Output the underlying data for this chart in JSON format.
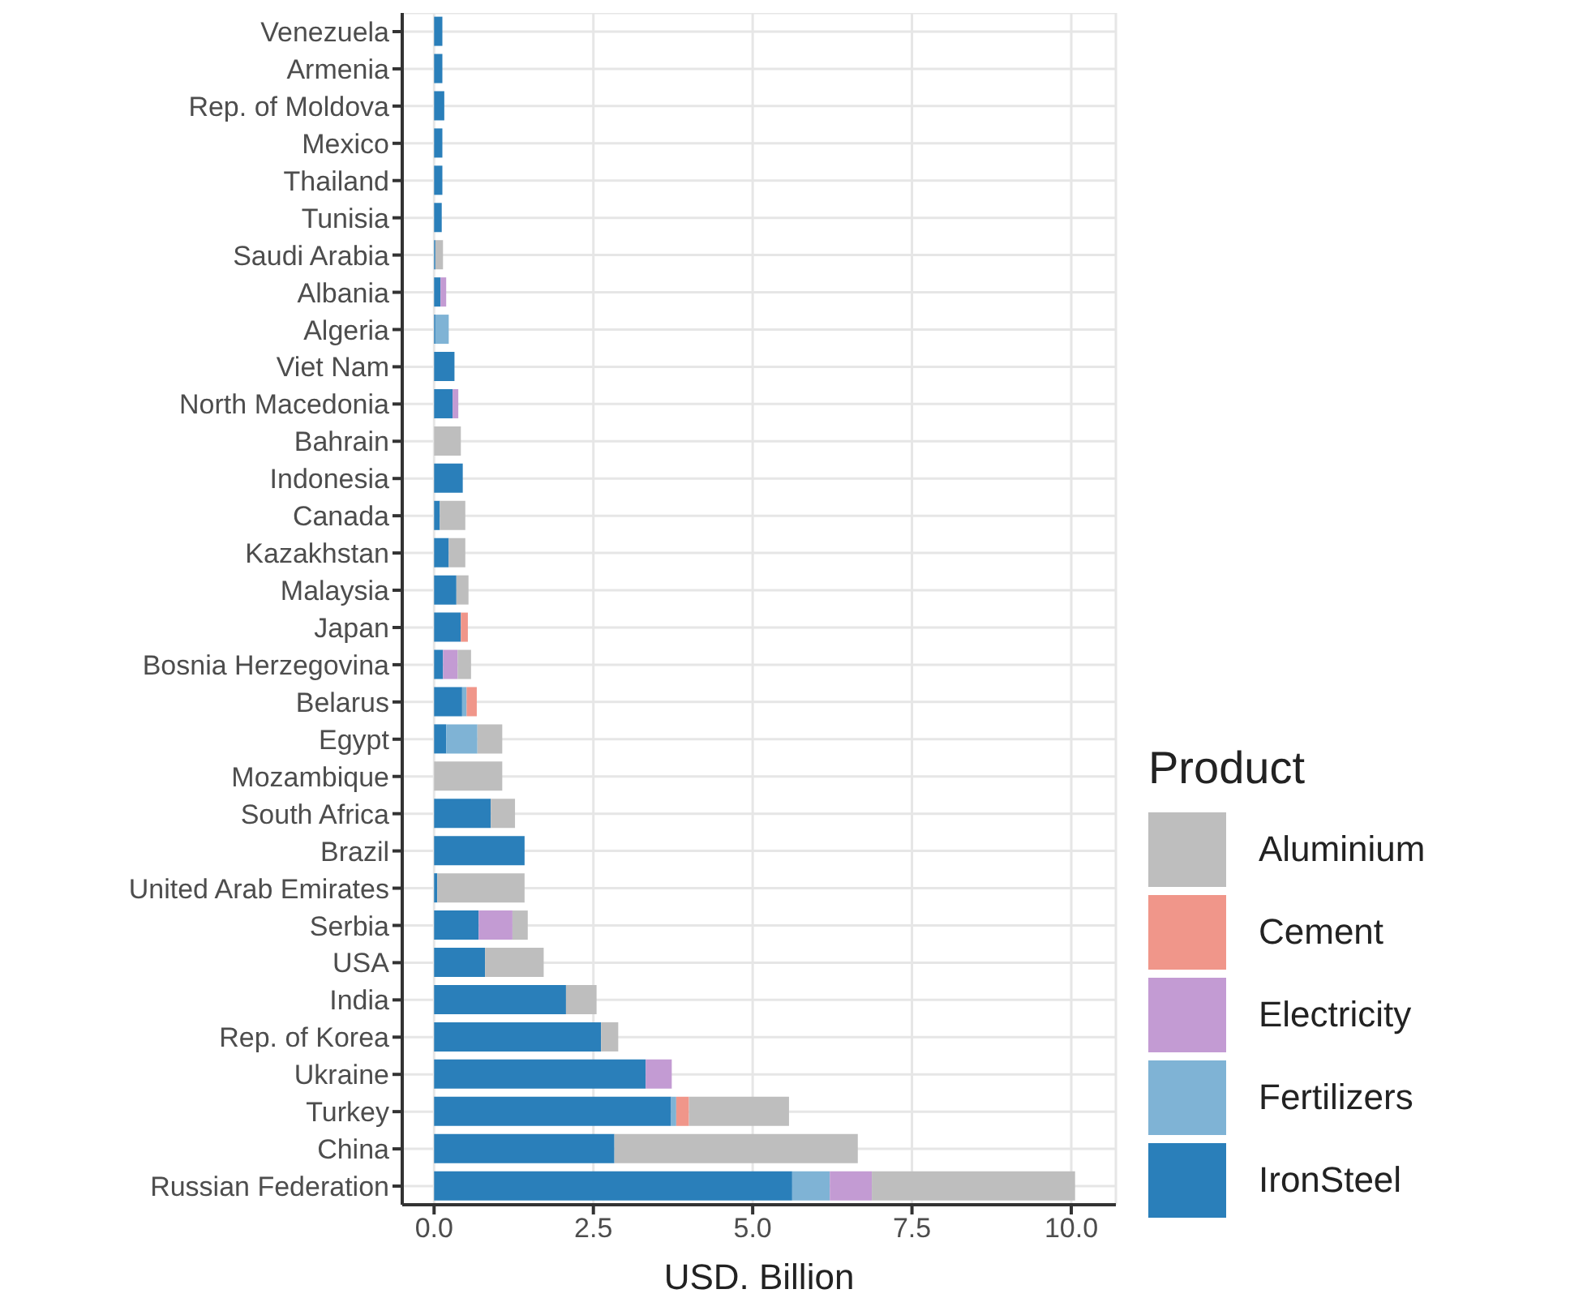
{
  "chart_data": {
    "type": "bar",
    "orientation": "horizontal",
    "stacked": true,
    "xlabel": "USD. Billion",
    "legend_title": "Product",
    "legend": "right",
    "grid": true,
    "categories": [
      "Venezuela",
      "Armenia",
      "Rep. of Moldova",
      "Mexico",
      "Thailand",
      "Tunisia",
      "Saudi Arabia",
      "Albania",
      "Algeria",
      "Viet Nam",
      "North Macedonia",
      "Bahrain",
      "Indonesia",
      "Canada",
      "Kazakhstan",
      "Malaysia",
      "Japan",
      "Bosnia Herzegovina",
      "Belarus",
      "Egypt",
      "Mozambique",
      "South Africa",
      "Brazil",
      "United Arab Emirates",
      "Serbia",
      "USA",
      "India",
      "Rep. of Korea",
      "Ukraine",
      "Turkey",
      "China",
      "Russian Federation"
    ],
    "xlim": [
      -0.5,
      10.7
    ],
    "xticks": [
      {
        "value": 0,
        "label": "0.0"
      },
      2.5,
      {
        "value": 5,
        "label": "5.0"
      },
      7.5,
      {
        "value": 10,
        "label": "10.0"
      }
    ],
    "series": [
      {
        "name": "IronSteel",
        "color": "#2a7fba",
        "values": [
          0.13,
          0.13,
          0.16,
          0.13,
          0.13,
          0.12,
          0.02,
          0.1,
          0.02,
          0.32,
          0.29,
          null,
          0.45,
          0.09,
          0.23,
          0.35,
          0.42,
          0.14,
          0.44,
          0.19,
          null,
          0.89,
          1.42,
          0.05,
          0.7,
          0.8,
          2.07,
          2.62,
          3.32,
          3.72,
          2.83,
          5.62
        ]
      },
      {
        "name": "Fertilizers",
        "color": "#7fb3d5",
        "values": [
          null,
          null,
          null,
          null,
          null,
          null,
          null,
          null,
          0.21,
          null,
          null,
          null,
          null,
          null,
          null,
          null,
          null,
          null,
          0.07,
          0.49,
          null,
          null,
          null,
          null,
          null,
          null,
          null,
          null,
          null,
          0.08,
          null,
          0.59
        ]
      },
      {
        "name": "Electricity",
        "color": "#c39bd3",
        "values": [
          null,
          null,
          null,
          null,
          null,
          null,
          null,
          0.09,
          null,
          null,
          0.09,
          null,
          null,
          null,
          null,
          null,
          null,
          0.23,
          null,
          null,
          null,
          null,
          null,
          null,
          0.53,
          null,
          null,
          null,
          0.41,
          null,
          null,
          0.66
        ]
      },
      {
        "name": "Cement",
        "color": "#f0968a",
        "values": [
          null,
          null,
          null,
          null,
          null,
          null,
          null,
          null,
          null,
          null,
          null,
          null,
          null,
          null,
          null,
          null,
          0.11,
          null,
          0.16,
          null,
          null,
          null,
          null,
          null,
          null,
          null,
          null,
          null,
          null,
          0.2,
          null,
          null
        ]
      },
      {
        "name": "Aluminium",
        "color": "#bebebe",
        "values": [
          null,
          null,
          null,
          null,
          null,
          null,
          0.12,
          null,
          null,
          null,
          null,
          0.42,
          null,
          0.4,
          0.26,
          0.19,
          null,
          0.21,
          null,
          0.39,
          1.07,
          0.38,
          null,
          1.37,
          0.24,
          0.92,
          0.48,
          0.27,
          null,
          1.57,
          3.82,
          3.19
        ]
      }
    ]
  }
}
